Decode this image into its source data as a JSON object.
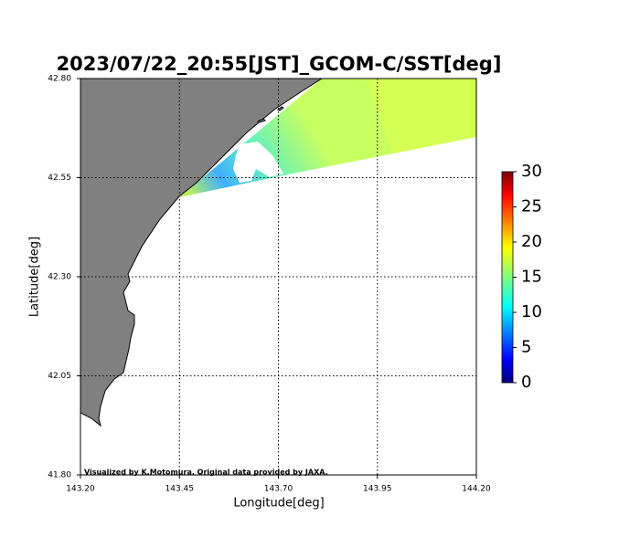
{
  "chart_data": {
    "type": "map",
    "title": "2023/07/22_20:55[JST]_GCOM-C/SST[deg]",
    "xlabel": "Longitude[deg]",
    "ylabel": "Latitude[deg]",
    "xlim": [
      143.2,
      144.2
    ],
    "ylim": [
      41.8,
      42.8
    ],
    "xticks": [
      {
        "value": 143.2,
        "label": "143.20"
      },
      {
        "value": 143.45,
        "label": "143.45"
      },
      {
        "value": 143.7,
        "label": "143.70"
      },
      {
        "value": 143.95,
        "label": "143.95"
      },
      {
        "value": 144.2,
        "label": "144.20"
      }
    ],
    "yticks": [
      {
        "value": 41.8,
        "label": "41.80"
      },
      {
        "value": 42.05,
        "label": "42.05"
      },
      {
        "value": 42.3,
        "label": "42.30"
      },
      {
        "value": 42.55,
        "label": "42.55"
      },
      {
        "value": 42.8,
        "label": "42.80"
      }
    ],
    "grid": true,
    "colorbar": {
      "lim": [
        0,
        30
      ],
      "ticks": [
        0,
        5,
        10,
        15,
        20,
        25,
        30
      ]
    },
    "credit": "Visualized by K.Motomura. Original data provided by JAXA."
  }
}
